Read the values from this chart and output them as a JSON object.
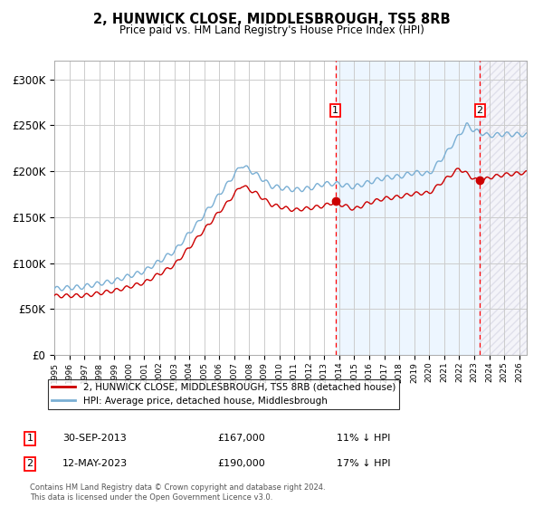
{
  "title": "2, HUNWICK CLOSE, MIDDLESBROUGH, TS5 8RB",
  "subtitle": "Price paid vs. HM Land Registry's House Price Index (HPI)",
  "legend_line1": "2, HUNWICK CLOSE, MIDDLESBROUGH, TS5 8RB (detached house)",
  "legend_line2": "HPI: Average price, detached house, Middlesbrough",
  "sale1_label": "1",
  "sale2_label": "2",
  "sale1_date": "30-SEP-2013",
  "sale1_price": "£167,000",
  "sale1_hpi": "11% ↓ HPI",
  "sale2_date": "12-MAY-2023",
  "sale2_price": "£190,000",
  "sale2_hpi": "17% ↓ HPI",
  "sale1_year": 2013.75,
  "sale2_year": 2023.37,
  "sale1_value": 167000,
  "sale2_value": 190000,
  "line_color_red": "#cc0000",
  "line_color_blue": "#7aafd4",
  "ylim": [
    0,
    320000
  ],
  "xlim_start": 1995.0,
  "xlim_end": 2026.5,
  "footer": "Contains HM Land Registry data © Crown copyright and database right 2024.\nThis data is licensed under the Open Government Licence v3.0."
}
